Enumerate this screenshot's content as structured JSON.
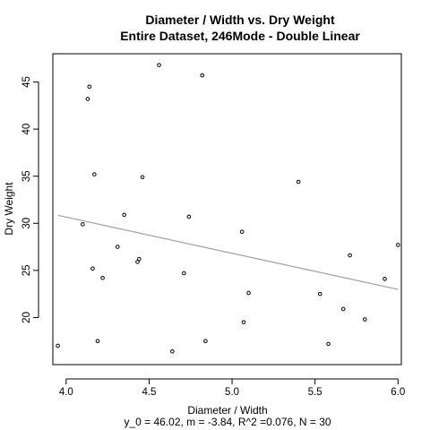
{
  "chart_data": {
    "type": "scatter",
    "title": "Diameter / Width vs. Dry Weight",
    "subtitle": "Entire Dataset, 246Mode - Double Linear",
    "xlabel": "Diameter / Width",
    "ylabel": "Dry Weight",
    "footer": "y_0 = 46.02, m = -3.84, R^2 =0.076, N = 30",
    "xlim": [
      3.92,
      6.02
    ],
    "ylim": [
      15.0,
      48.0
    ],
    "x_ticks": [
      4.0,
      4.5,
      5.0,
      5.5,
      6.0
    ],
    "x_tick_labels": [
      "4.0",
      "4.5",
      "5.0",
      "5.5",
      "6.0"
    ],
    "y_ticks": [
      20,
      25,
      30,
      35,
      40,
      45
    ],
    "y_tick_labels": [
      "20",
      "25",
      "30",
      "35",
      "40",
      "45"
    ],
    "grid": false,
    "point_color": "#000000",
    "fit_line_color": "#a0a0a0",
    "fit_line": {
      "intercept": 46.02,
      "slope": -3.84,
      "x_start": 3.95,
      "x_end": 6.0
    },
    "points": [
      {
        "x": 3.95,
        "y": 17.0
      },
      {
        "x": 4.1,
        "y": 29.9
      },
      {
        "x": 4.13,
        "y": 43.2
      },
      {
        "x": 4.14,
        "y": 44.5
      },
      {
        "x": 4.16,
        "y": 25.2
      },
      {
        "x": 4.17,
        "y": 35.2
      },
      {
        "x": 4.19,
        "y": 17.5
      },
      {
        "x": 4.22,
        "y": 24.2
      },
      {
        "x": 4.31,
        "y": 27.5
      },
      {
        "x": 4.35,
        "y": 30.9
      },
      {
        "x": 4.43,
        "y": 25.9
      },
      {
        "x": 4.44,
        "y": 26.2
      },
      {
        "x": 4.46,
        "y": 34.9
      },
      {
        "x": 4.56,
        "y": 46.8
      },
      {
        "x": 4.64,
        "y": 16.4
      },
      {
        "x": 4.71,
        "y": 24.7
      },
      {
        "x": 4.74,
        "y": 30.7
      },
      {
        "x": 4.82,
        "y": 45.7
      },
      {
        "x": 4.84,
        "y": 17.5
      },
      {
        "x": 5.06,
        "y": 29.1
      },
      {
        "x": 5.07,
        "y": 19.5
      },
      {
        "x": 5.1,
        "y": 22.6
      },
      {
        "x": 5.4,
        "y": 34.4
      },
      {
        "x": 5.53,
        "y": 22.5
      },
      {
        "x": 5.58,
        "y": 17.2
      },
      {
        "x": 5.67,
        "y": 20.9
      },
      {
        "x": 5.71,
        "y": 26.6
      },
      {
        "x": 5.8,
        "y": 19.8
      },
      {
        "x": 5.92,
        "y": 24.1
      },
      {
        "x": 6.0,
        "y": 27.7
      }
    ]
  }
}
